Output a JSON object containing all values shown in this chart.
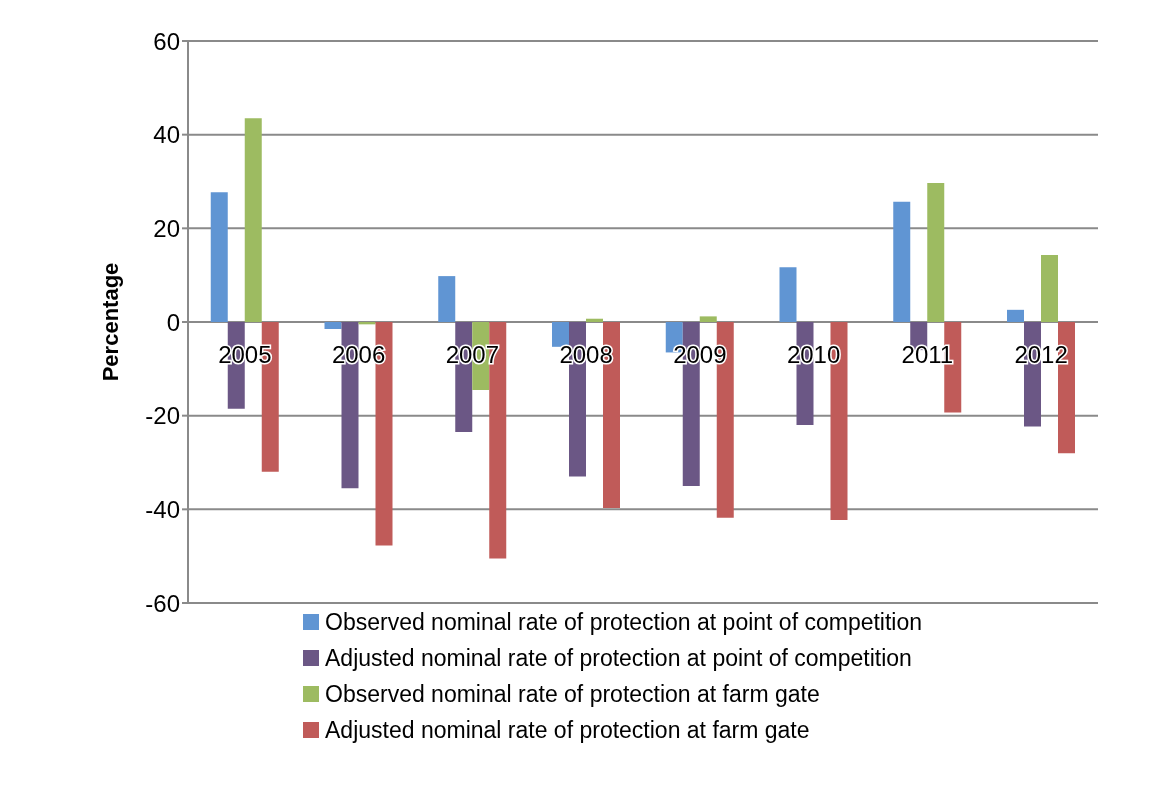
{
  "chart_data": {
    "type": "bar",
    "ylabel": "Percentage",
    "categories": [
      "2005",
      "2006",
      "2007",
      "2008",
      "2009",
      "2010",
      "2011",
      "2012"
    ],
    "series": [
      {
        "name": "Observed nominal rate of protection at point of competition",
        "color": "#6095d3",
        "values": [
          27.7,
          -1.5,
          9.8,
          -5.3,
          -6.5,
          11.7,
          25.7,
          2.6
        ]
      },
      {
        "name": "Adjusted nominal rate of protection at point of competition",
        "color": "#6b5785",
        "values": [
          -18.5,
          -35.5,
          -23.5,
          -33,
          -35,
          -22,
          -6,
          -22.3
        ]
      },
      {
        "name": "Observed nominal rate of protection at farm gate",
        "color": "#9dbb61",
        "values": [
          43.5,
          -0.5,
          -14.5,
          0.7,
          1.2,
          0,
          29.7,
          14.3
        ]
      },
      {
        "name": "Adjusted nominal rate of protection at farm gate",
        "color": "#c05b59",
        "values": [
          -32,
          -47.7,
          -50.5,
          -39.7,
          -41.8,
          -42.3,
          -19.3,
          -28
        ]
      }
    ],
    "ylim": [
      -60,
      60
    ],
    "yticks": [
      -60,
      -40,
      -20,
      0,
      20,
      40,
      60
    ],
    "grid": "y",
    "legend": "bottom"
  }
}
